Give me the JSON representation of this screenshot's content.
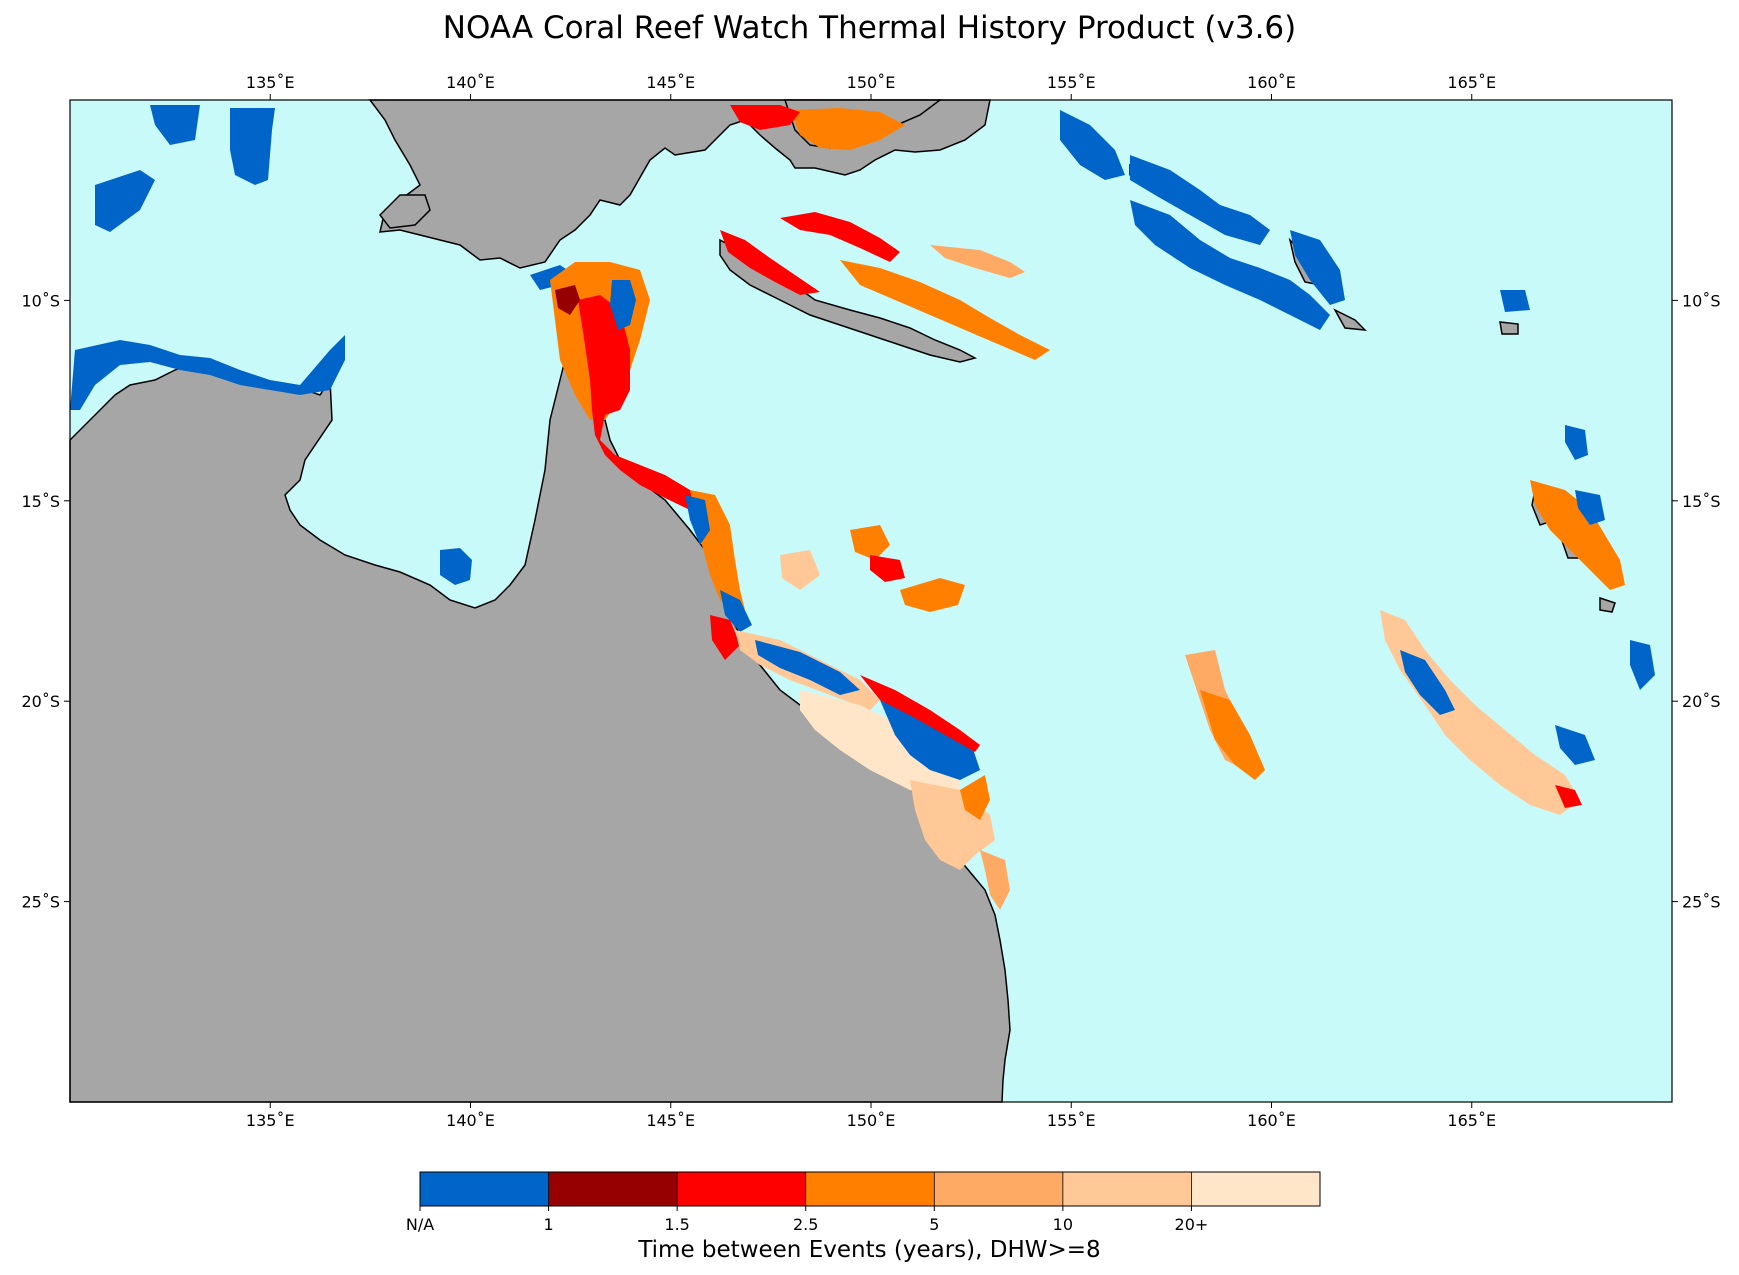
{
  "title": "NOAA Coral Reef Watch Thermal History Product (v3.6)",
  "map": {
    "lon_range": [
      130,
      170
    ],
    "lat_range": [
      -30,
      -5
    ],
    "lon_ticks": [
      {
        "value": 135,
        "label": "135˚E"
      },
      {
        "value": 140,
        "label": "140˚E"
      },
      {
        "value": 145,
        "label": "145˚E"
      },
      {
        "value": 150,
        "label": "150˚E"
      },
      {
        "value": 155,
        "label": "155˚E"
      },
      {
        "value": 160,
        "label": "160˚E"
      },
      {
        "value": 165,
        "label": "165˚E"
      }
    ],
    "lat_ticks": [
      {
        "value": -10,
        "label": "10˚S"
      },
      {
        "value": -15,
        "label": "15˚S"
      },
      {
        "value": -20,
        "label": "20˚S"
      },
      {
        "value": -25,
        "label": "25˚S"
      }
    ],
    "colors": {
      "ocean": "#c8fafa",
      "land": "#a6a6a6",
      "coast": "#000000"
    }
  },
  "colorbar": {
    "title": "Time between Events (years), DHW>=8",
    "tick_labels": [
      "N/A",
      "1",
      "1.5",
      "2.5",
      "5",
      "10",
      "20+"
    ],
    "colors": [
      "#0064c8",
      "#960000",
      "#ff0000",
      "#ff8000",
      "#ffaa64",
      "#ffc896",
      "#ffe6c8"
    ]
  }
}
